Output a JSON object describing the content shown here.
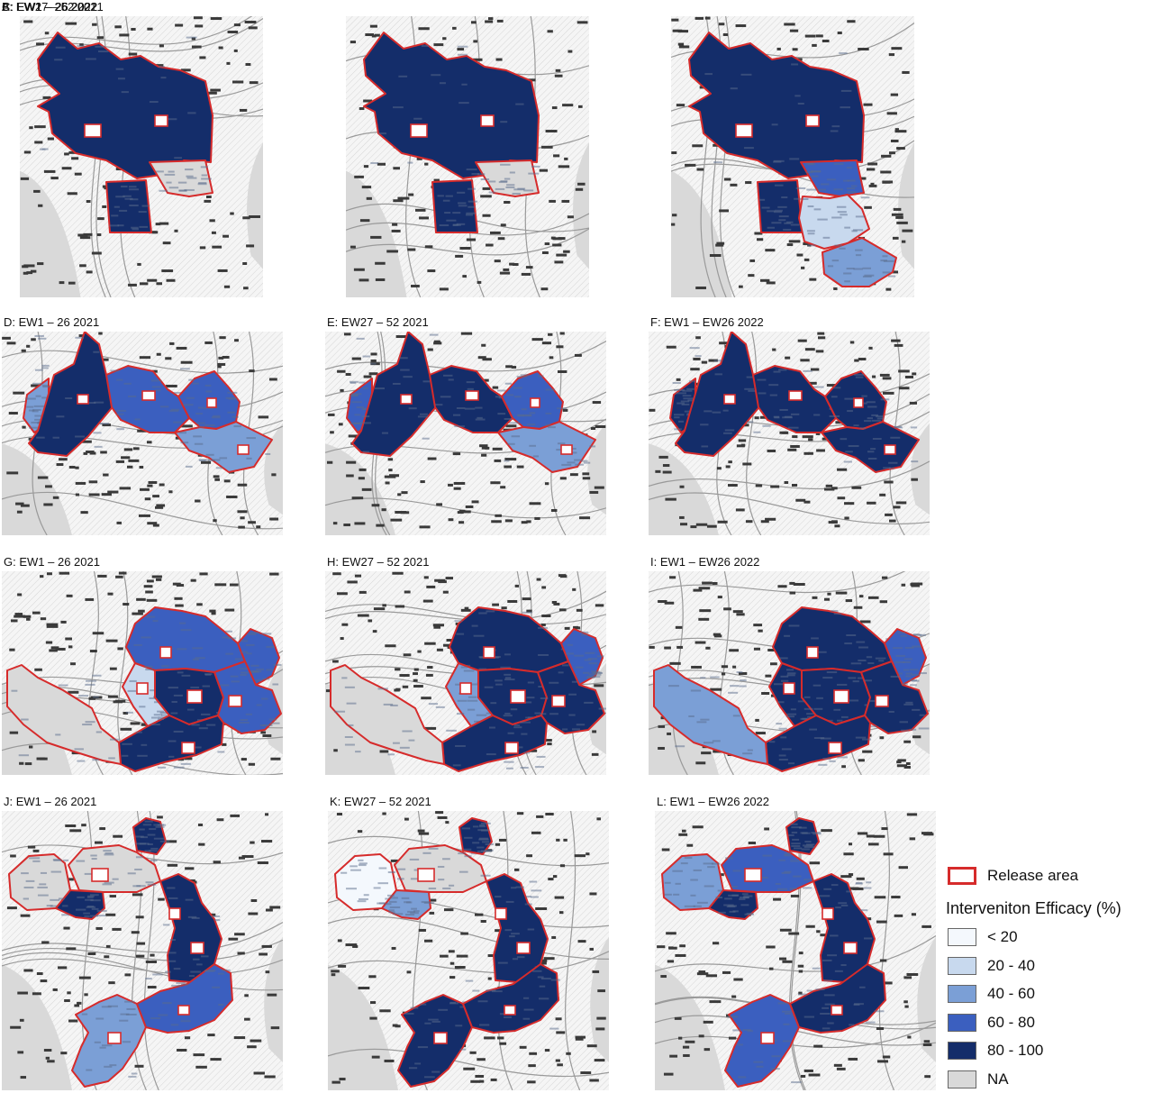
{
  "panels": [
    {
      "label": "A: EW1 – 26 2021",
      "shape": "A",
      "theme": "a"
    },
    {
      "label": "B: EW27 – 52 2021",
      "shape": "A",
      "theme": "b"
    },
    {
      "label": "C: EW1 – 26 2022",
      "shape": "A",
      "theme": "c"
    },
    {
      "label": "D: EW1 – 26 2021",
      "shape": "D",
      "theme": "d"
    },
    {
      "label": "E: EW27 – 52 2021",
      "shape": "D",
      "theme": "e"
    },
    {
      "label": "F: EW1 – EW26 2022",
      "shape": "D",
      "theme": "f"
    },
    {
      "label": "G: EW1 – 26 2021",
      "shape": "G",
      "theme": "g"
    },
    {
      "label": "H: EW27 – 52 2021",
      "shape": "G",
      "theme": "h"
    },
    {
      "label": "I: EW1 – EW26 2022",
      "shape": "G",
      "theme": "i"
    },
    {
      "label": "J: EW1 – 26 2021",
      "shape": "J",
      "theme": "j"
    },
    {
      "label": "K: EW27 – 52 2021",
      "shape": "J",
      "theme": "k"
    },
    {
      "label": "L: EW1 – EW26 2022",
      "shape": "J",
      "theme": "l"
    }
  ],
  "legend": {
    "release_area_label": "Release area",
    "release_area_color": "#d62b2b",
    "heading": "Interveniton Efficacy (%)",
    "classes": [
      {
        "label": "< 20",
        "color": "#f4f8fd"
      },
      {
        "label": "20 - 40",
        "color": "#c8d9ee"
      },
      {
        "label": "40 - 60",
        "color": "#7b9fd6"
      },
      {
        "label": "60 - 80",
        "color": "#3b5fbf"
      },
      {
        "label": "80 - 100",
        "color": "#142d6a"
      },
      {
        "label": "NA",
        "color": "#d9d9d9"
      }
    ]
  }
}
